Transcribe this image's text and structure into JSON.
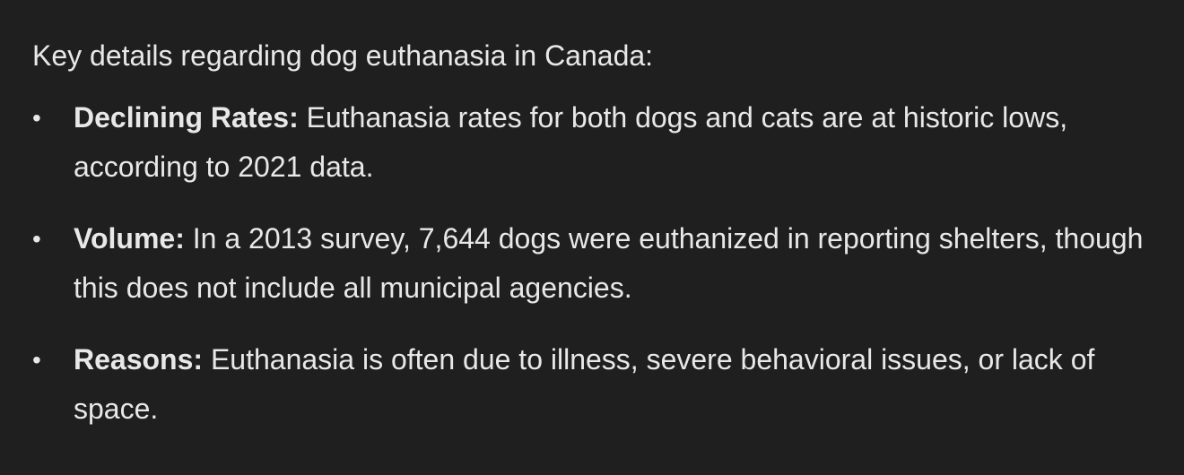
{
  "intro": "Key details regarding dog euthanasia in Canada:",
  "items": [
    {
      "label": "Declining Rates:",
      "text": " Euthanasia rates for both dogs and cats are at historic lows, according to 2021 data."
    },
    {
      "label": "Volume:",
      "text": " In a 2013 survey, 7,644 dogs were euthanized in reporting shelters, though this does not include all municipal agencies."
    },
    {
      "label": "Reasons:",
      "text": " Euthanasia is often due to illness, severe behavioral issues, or lack of space."
    }
  ]
}
